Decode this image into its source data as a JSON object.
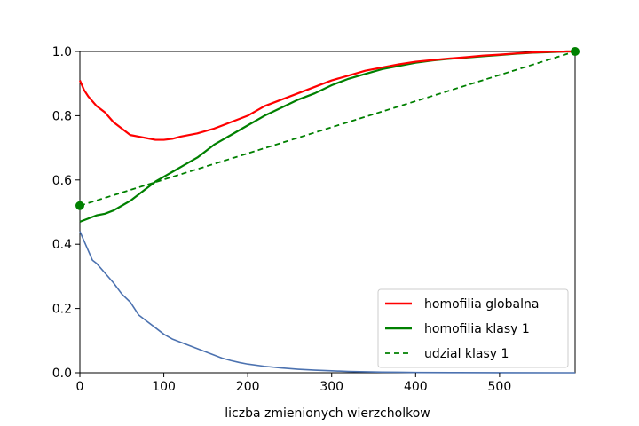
{
  "chart_data": {
    "type": "line",
    "xlabel": "liczba zmienionych wierzcholkow",
    "ylabel": "",
    "xlim": [
      0,
      590
    ],
    "ylim": [
      0.0,
      1.0
    ],
    "x_ticks": [
      "0",
      "100",
      "200",
      "300",
      "400",
      "500"
    ],
    "x_tick_values": [
      0,
      100,
      200,
      300,
      400,
      500
    ],
    "y_ticks": [
      "0.0",
      "0.2",
      "0.4",
      "0.6",
      "0.8",
      "1.0"
    ],
    "y_tick_values": [
      0.0,
      0.2,
      0.4,
      0.6,
      0.8,
      1.0
    ],
    "grid": false,
    "legend_position": "lower right",
    "series": [
      {
        "name": "homofilia globalna",
        "color": "#ff0000",
        "style": "solid",
        "in_legend": true,
        "x": [
          0,
          5,
          10,
          20,
          30,
          40,
          50,
          60,
          70,
          80,
          90,
          100,
          110,
          120,
          140,
          160,
          180,
          200,
          220,
          240,
          260,
          280,
          300,
          320,
          340,
          360,
          380,
          400,
          420,
          440,
          460,
          480,
          500,
          520,
          540,
          560,
          580,
          590
        ],
        "y": [
          0.91,
          0.88,
          0.86,
          0.83,
          0.81,
          0.78,
          0.76,
          0.74,
          0.735,
          0.73,
          0.725,
          0.725,
          0.728,
          0.735,
          0.745,
          0.76,
          0.78,
          0.8,
          0.83,
          0.85,
          0.87,
          0.89,
          0.91,
          0.925,
          0.94,
          0.95,
          0.96,
          0.968,
          0.973,
          0.978,
          0.982,
          0.987,
          0.99,
          0.994,
          0.997,
          0.999,
          1.0,
          1.0
        ]
      },
      {
        "name": "homofilia klasy 1",
        "color": "#008000",
        "style": "solid",
        "in_legend": true,
        "x": [
          0,
          10,
          20,
          30,
          40,
          50,
          60,
          70,
          80,
          90,
          100,
          110,
          120,
          140,
          160,
          180,
          200,
          220,
          240,
          260,
          280,
          300,
          320,
          340,
          360,
          380,
          400,
          420,
          440,
          460,
          480,
          500,
          520,
          540,
          560,
          580,
          590
        ],
        "y": [
          0.47,
          0.48,
          0.49,
          0.495,
          0.505,
          0.52,
          0.535,
          0.555,
          0.575,
          0.595,
          0.61,
          0.625,
          0.64,
          0.67,
          0.71,
          0.74,
          0.77,
          0.8,
          0.825,
          0.85,
          0.87,
          0.895,
          0.915,
          0.93,
          0.945,
          0.955,
          0.965,
          0.972,
          0.977,
          0.981,
          0.985,
          0.989,
          0.993,
          0.996,
          0.998,
          1.0,
          1.0
        ]
      },
      {
        "name": "udzial klasy 1",
        "color": "#008000",
        "style": "dashed",
        "in_legend": true,
        "x": [
          0,
          590
        ],
        "y": [
          0.52,
          1.0
        ]
      },
      {
        "name": "",
        "color": "#4c72b0",
        "style": "solid",
        "in_legend": false,
        "x": [
          0,
          5,
          10,
          15,
          20,
          30,
          40,
          50,
          60,
          70,
          80,
          90,
          100,
          110,
          120,
          130,
          140,
          150,
          160,
          170,
          180,
          190,
          200,
          220,
          240,
          260,
          280,
          300,
          320,
          340,
          360,
          380,
          400,
          450,
          500,
          590
        ],
        "y": [
          0.44,
          0.41,
          0.38,
          0.35,
          0.34,
          0.31,
          0.28,
          0.245,
          0.22,
          0.18,
          0.16,
          0.14,
          0.12,
          0.105,
          0.095,
          0.085,
          0.075,
          0.065,
          0.055,
          0.045,
          0.038,
          0.032,
          0.027,
          0.02,
          0.015,
          0.011,
          0.008,
          0.006,
          0.004,
          0.003,
          0.002,
          0.0015,
          0.001,
          0.0005,
          0.0002,
          0.0
        ]
      }
    ],
    "markers": [
      {
        "x": 0,
        "y": 0.52,
        "color": "#008000"
      },
      {
        "x": 590,
        "y": 1.0,
        "color": "#008000"
      }
    ]
  }
}
